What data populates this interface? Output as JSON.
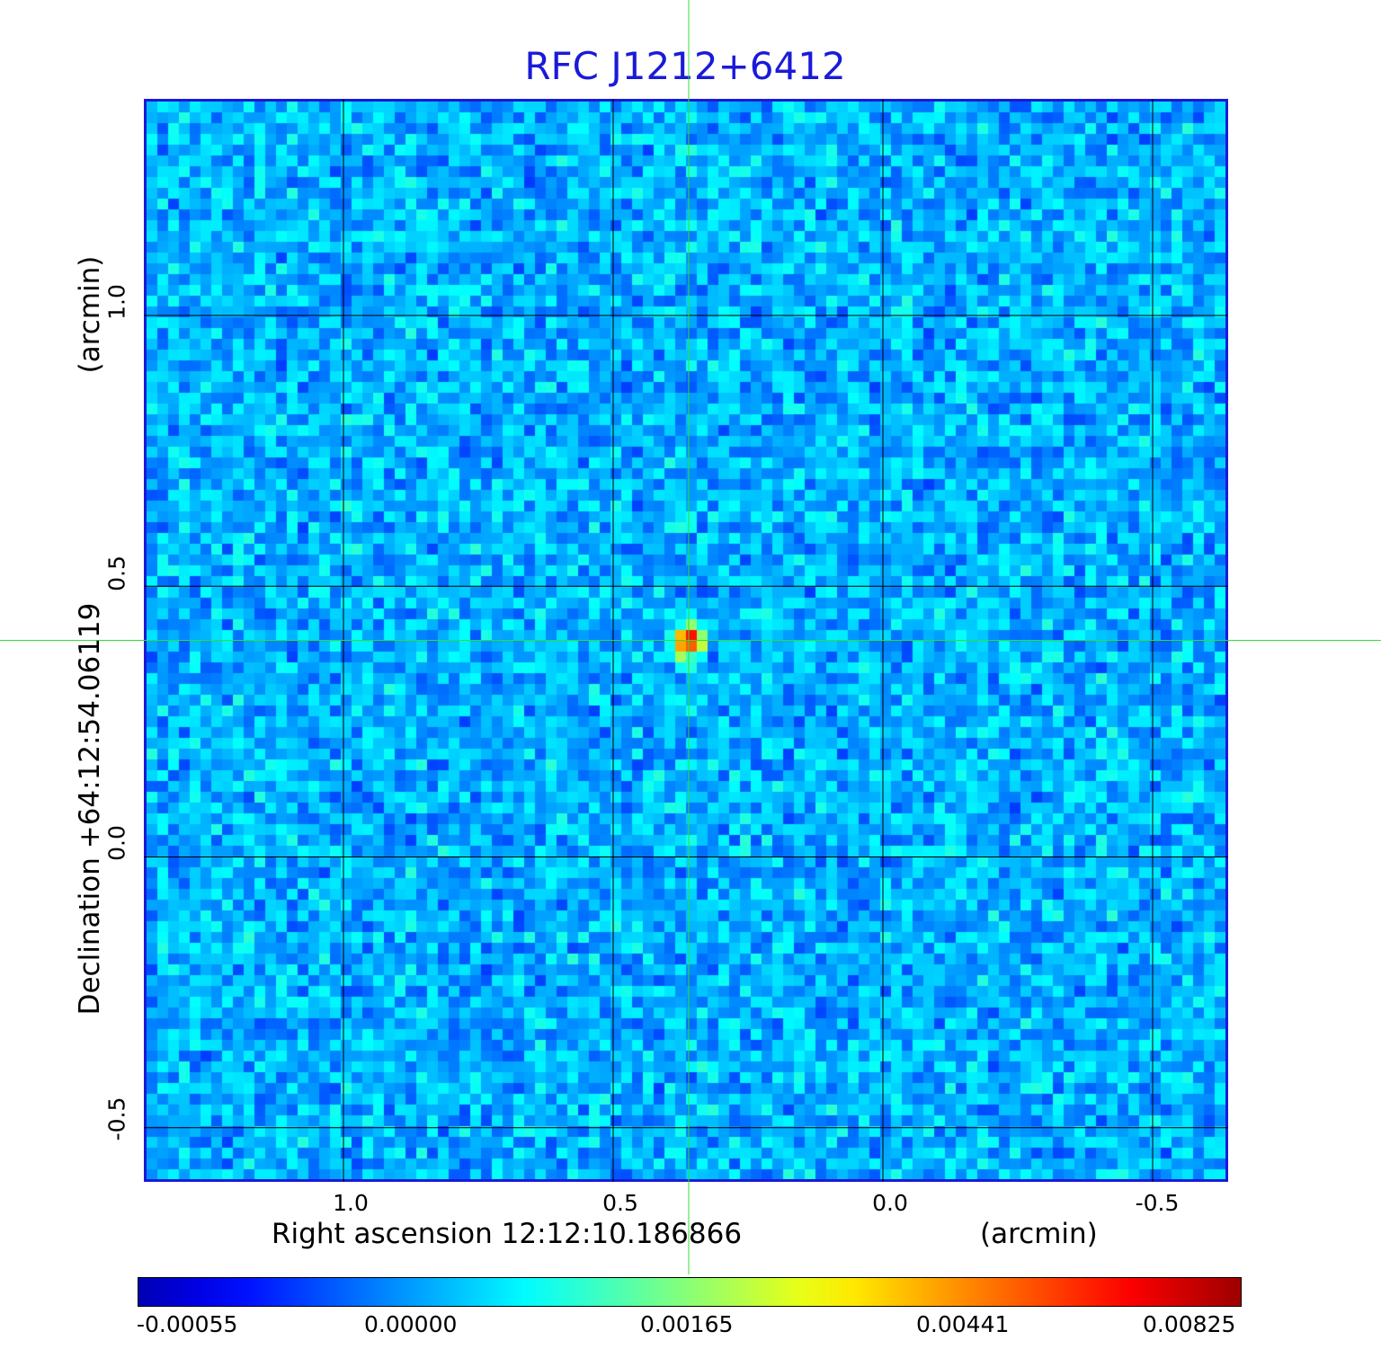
{
  "chart_data": {
    "type": "heatmap",
    "title": "RFC J1212+6412",
    "xlabel": "Right ascension  12:12:10.186866",
    "xunit": "(arcmin)",
    "ylabel": "Declination  +64:12:54.06119",
    "yunit": "(arcmin)",
    "x_ticks": [
      "1.0",
      "0.5",
      "0.0",
      "-0.5"
    ],
    "y_ticks": [
      "1.0",
      "0.5",
      "0.0",
      "-0.5"
    ],
    "x_range": [
      1.37,
      -0.64
    ],
    "y_range": [
      -0.6,
      1.4
    ],
    "x_tick_values": [
      1.0,
      0.5,
      0.0,
      -0.5
    ],
    "y_tick_values": [
      1.0,
      0.5,
      0.0,
      -0.5
    ],
    "source_peak": {
      "x": 0.36,
      "y": 0.4,
      "value": 0.00825
    },
    "crosshair": {
      "x": 0.36,
      "y": 0.4
    },
    "grid": true,
    "colorbar": {
      "ticks": [
        "-0.00055",
        "0.00000",
        "0.00165",
        "0.00441",
        "0.00825"
      ],
      "tick_values": [
        -0.00055,
        0.0,
        0.00165,
        0.00441,
        0.00825
      ],
      "colormap": "jet"
    }
  },
  "colors": {
    "title": "#1a1ad8",
    "frame": "#1a1ad8",
    "crosshair": "#33dd33",
    "grid": "#000000"
  }
}
